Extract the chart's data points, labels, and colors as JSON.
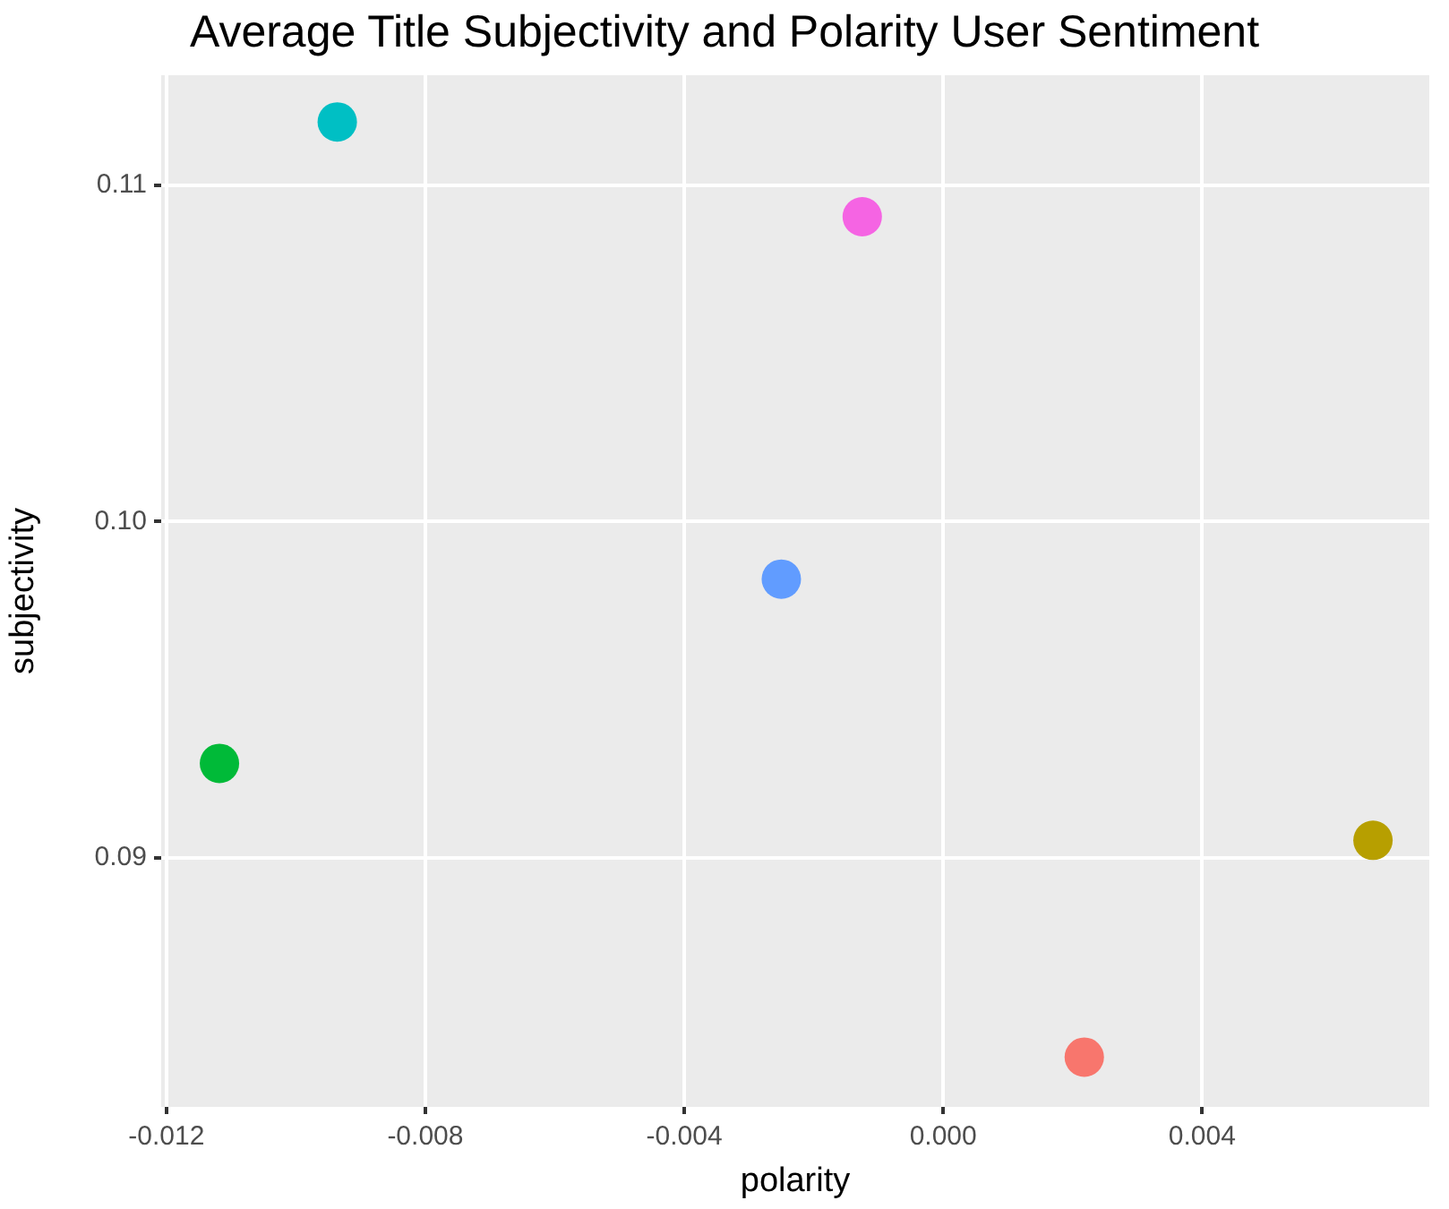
{
  "chart_data": {
    "type": "scatter",
    "title": "Average Title Subjectivity and Polarity User Sentiment",
    "xlabel": "polarity",
    "ylabel": "subjectivity",
    "x": [
      -0.00936,
      -0.00125,
      -0.0025,
      -0.01118,
      0.00664,
      0.00218
    ],
    "values": [
      0.11189,
      0.10907,
      0.09829,
      0.09281,
      0.09052,
      0.08407
    ],
    "colors": [
      "#00bfc4",
      "#f564e3",
      "#619cff",
      "#00ba38",
      "#b79f00",
      "#f8766d"
    ],
    "xlim": [
      -0.01208,
      0.00751
    ],
    "xticks": [
      -0.012,
      -0.008,
      -0.004,
      {
        "value": 0,
        "label": "0.000"
      },
      0.004
    ],
    "ylim": [
      0.08259,
      0.11328
    ],
    "yticks": [
      0.09,
      {
        "value": 0.1,
        "label": "0.10"
      },
      0.11
    ],
    "grid": true,
    "legend": false,
    "marker": "circle"
  }
}
